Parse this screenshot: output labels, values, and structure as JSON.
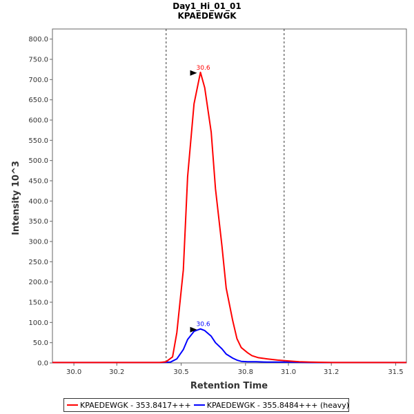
{
  "chart_data": {
    "type": "line",
    "title": "Day1_Hi_01_01",
    "subtitle": "KPAEDEWGK",
    "xlabel": "Retention Time",
    "ylabel": "Intensity 10^3",
    "xlim": [
      29.9,
      31.55
    ],
    "ylim": [
      0,
      825
    ],
    "x_ticks": [
      30.0,
      30.2,
      30.5,
      30.8,
      31.0,
      31.2,
      31.5
    ],
    "x_tick_labels": [
      "30.0",
      "30.2",
      "30.5",
      "30.8",
      "31.0",
      "31.2",
      "31.5"
    ],
    "y_ticks": [
      0,
      50,
      100,
      150,
      200,
      250,
      300,
      350,
      400,
      450,
      500,
      550,
      600,
      650,
      700,
      750,
      800
    ],
    "y_tick_labels": [
      "0.0",
      "50.0",
      "100.0",
      "150.0",
      "200.0",
      "250.0",
      "300.0",
      "350.0",
      "400.0",
      "450.0",
      "500.0",
      "550.0",
      "600.0",
      "650.0",
      "700.0",
      "750.0",
      "800.0"
    ],
    "grid": false,
    "legend_position": "bottom",
    "integration_bounds": [
      30.43,
      30.98
    ],
    "series": [
      {
        "name": "KPAEDEWGK - 353.8417+++",
        "color": "#ff0000",
        "peak_label": "30.6",
        "peak": {
          "x": 30.59,
          "y": 718
        },
        "x": [
          29.9,
          30.0,
          30.1,
          30.2,
          30.3,
          30.4,
          30.43,
          30.46,
          30.48,
          30.51,
          30.53,
          30.56,
          30.59,
          30.61,
          30.64,
          30.66,
          30.69,
          30.71,
          30.74,
          30.76,
          30.78,
          30.81,
          30.83,
          30.86,
          30.9,
          30.95,
          31.0,
          31.05,
          31.1,
          31.2,
          31.3,
          31.4,
          31.5,
          31.55
        ],
        "y": [
          1,
          1,
          1,
          1,
          1,
          1,
          3,
          15,
          75,
          230,
          460,
          640,
          718,
          680,
          570,
          430,
          290,
          185,
          105,
          60,
          38,
          25,
          18,
          13,
          10,
          7,
          5,
          3,
          2,
          1,
          1,
          1,
          1,
          1
        ]
      },
      {
        "name": "KPAEDEWGK - 355.8484+++ (heavy)",
        "color": "#0000ff",
        "peak_label": "30.6",
        "peak": {
          "x": 30.59,
          "y": 84
        },
        "x": [
          29.9,
          30.0,
          30.1,
          30.2,
          30.3,
          30.4,
          30.45,
          30.48,
          30.51,
          30.53,
          30.56,
          30.59,
          30.61,
          30.64,
          30.66,
          30.69,
          30.71,
          30.74,
          30.76,
          30.78,
          30.81,
          30.85,
          30.9,
          31.0,
          31.1,
          31.2,
          31.3,
          31.4,
          31.5,
          31.55
        ],
        "y": [
          1,
          1,
          1,
          1,
          1,
          1,
          2,
          10,
          33,
          58,
          78,
          84,
          80,
          66,
          50,
          35,
          22,
          12,
          7,
          4,
          3,
          3,
          2,
          2,
          1,
          1,
          1,
          1,
          1,
          1
        ]
      }
    ]
  }
}
